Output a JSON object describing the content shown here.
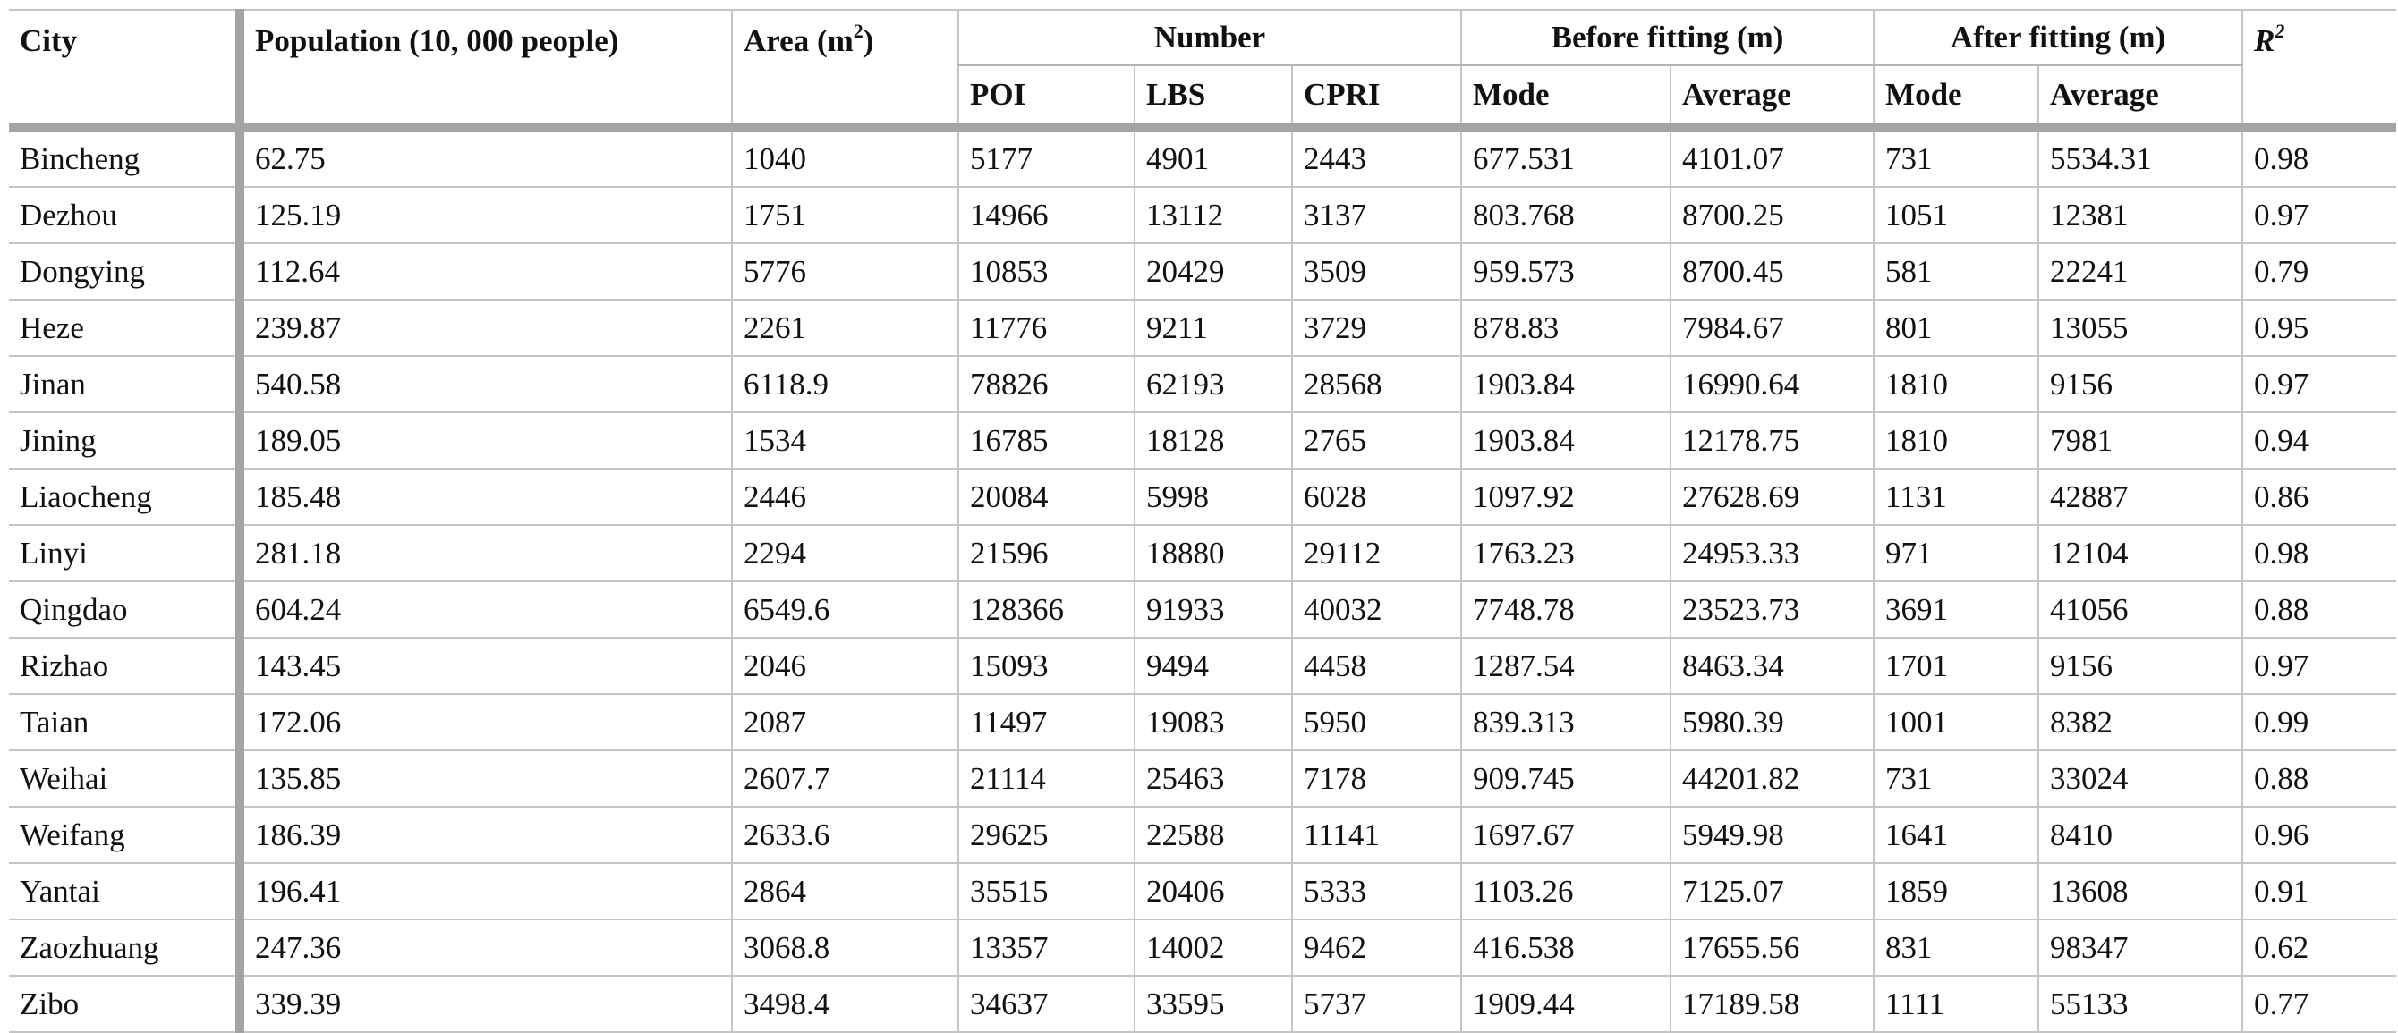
{
  "table": {
    "headers": {
      "city": "City",
      "population": "Population (10, 000 people)",
      "area": "Area (m",
      "area_sup": "2",
      "area_close": ")",
      "number": "Number",
      "before_fitting": "Before fitting (m)",
      "after_fitting": "After fitting (m)",
      "r2_letter": "R",
      "r2_sup": "2",
      "poi": "POI",
      "lbs": "LBS",
      "cpri": "CPRI",
      "before_mode": "Mode",
      "before_average": "Average",
      "after_mode": "Mode",
      "after_average": "Average"
    },
    "rows": [
      {
        "city": "Bincheng",
        "population": "62.75",
        "area": "1040",
        "poi": "5177",
        "lbs": "4901",
        "cpri": "2443",
        "before_mode": "677.531",
        "before_average": "4101.07",
        "after_mode": "731",
        "after_average": "5534.31",
        "r2": "0.98"
      },
      {
        "city": "Dezhou",
        "population": "125.19",
        "area": "1751",
        "poi": "14966",
        "lbs": "13112",
        "cpri": "3137",
        "before_mode": "803.768",
        "before_average": "8700.25",
        "after_mode": "1051",
        "after_average": "12381",
        "r2": "0.97"
      },
      {
        "city": "Dongying",
        "population": "112.64",
        "area": "5776",
        "poi": "10853",
        "lbs": "20429",
        "cpri": "3509",
        "before_mode": "959.573",
        "before_average": "8700.45",
        "after_mode": "581",
        "after_average": "22241",
        "r2": "0.79"
      },
      {
        "city": "Heze",
        "population": "239.87",
        "area": "2261",
        "poi": "11776",
        "lbs": "9211",
        "cpri": "3729",
        "before_mode": "878.83",
        "before_average": "7984.67",
        "after_mode": "801",
        "after_average": "13055",
        "r2": "0.95"
      },
      {
        "city": "Jinan",
        "population": "540.58",
        "area": "6118.9",
        "poi": "78826",
        "lbs": "62193",
        "cpri": "28568",
        "before_mode": "1903.84",
        "before_average": "16990.64",
        "after_mode": "1810",
        "after_average": "9156",
        "r2": "0.97"
      },
      {
        "city": "Jining",
        "population": "189.05",
        "area": "1534",
        "poi": "16785",
        "lbs": "18128",
        "cpri": "2765",
        "before_mode": "1903.84",
        "before_average": "12178.75",
        "after_mode": "1810",
        "after_average": "7981",
        "r2": "0.94"
      },
      {
        "city": "Liaocheng",
        "population": "185.48",
        "area": "2446",
        "poi": "20084",
        "lbs": "5998",
        "cpri": "6028",
        "before_mode": "1097.92",
        "before_average": "27628.69",
        "after_mode": "1131",
        "after_average": "42887",
        "r2": "0.86"
      },
      {
        "city": "Linyi",
        "population": "281.18",
        "area": "2294",
        "poi": "21596",
        "lbs": "18880",
        "cpri": "29112",
        "before_mode": "1763.23",
        "before_average": "24953.33",
        "after_mode": "971",
        "after_average": "12104",
        "r2": "0.98"
      },
      {
        "city": "Qingdao",
        "population": "604.24",
        "area": "6549.6",
        "poi": "128366",
        "lbs": "91933",
        "cpri": "40032",
        "before_mode": "7748.78",
        "before_average": "23523.73",
        "after_mode": "3691",
        "after_average": "41056",
        "r2": "0.88"
      },
      {
        "city": "Rizhao",
        "population": "143.45",
        "area": "2046",
        "poi": "15093",
        "lbs": "9494",
        "cpri": "4458",
        "before_mode": "1287.54",
        "before_average": "8463.34",
        "after_mode": "1701",
        "after_average": "9156",
        "r2": "0.97"
      },
      {
        "city": "Taian",
        "population": "172.06",
        "area": "2087",
        "poi": "11497",
        "lbs": "19083",
        "cpri": "5950",
        "before_mode": "839.313",
        "before_average": "5980.39",
        "after_mode": "1001",
        "after_average": "8382",
        "r2": "0.99"
      },
      {
        "city": "Weihai",
        "population": "135.85",
        "area": "2607.7",
        "poi": "21114",
        "lbs": "25463",
        "cpri": "7178",
        "before_mode": "909.745",
        "before_average": "44201.82",
        "after_mode": "731",
        "after_average": "33024",
        "r2": "0.88"
      },
      {
        "city": "Weifang",
        "population": "186.39",
        "area": "2633.6",
        "poi": "29625",
        "lbs": "22588",
        "cpri": "11141",
        "before_mode": "1697.67",
        "before_average": "5949.98",
        "after_mode": "1641",
        "after_average": "8410",
        "r2": "0.96"
      },
      {
        "city": "Yantai",
        "population": "196.41",
        "area": "2864",
        "poi": "35515",
        "lbs": "20406",
        "cpri": "5333",
        "before_mode": "1103.26",
        "before_average": "7125.07",
        "after_mode": "1859",
        "after_average": "13608",
        "r2": "0.91"
      },
      {
        "city": "Zaozhuang",
        "population": "247.36",
        "area": "3068.8",
        "poi": "13357",
        "lbs": "14002",
        "cpri": "9462",
        "before_mode": "416.538",
        "before_average": "17655.56",
        "after_mode": "831",
        "after_average": "98347",
        "r2": "0.62"
      },
      {
        "city": "Zibo",
        "population": "339.39",
        "area": "3498.4",
        "poi": "34637",
        "lbs": "33595",
        "cpri": "5737",
        "before_mode": "1909.44",
        "before_average": "17189.58",
        "after_mode": "1111",
        "after_average": "55133",
        "r2": "0.77"
      }
    ]
  }
}
